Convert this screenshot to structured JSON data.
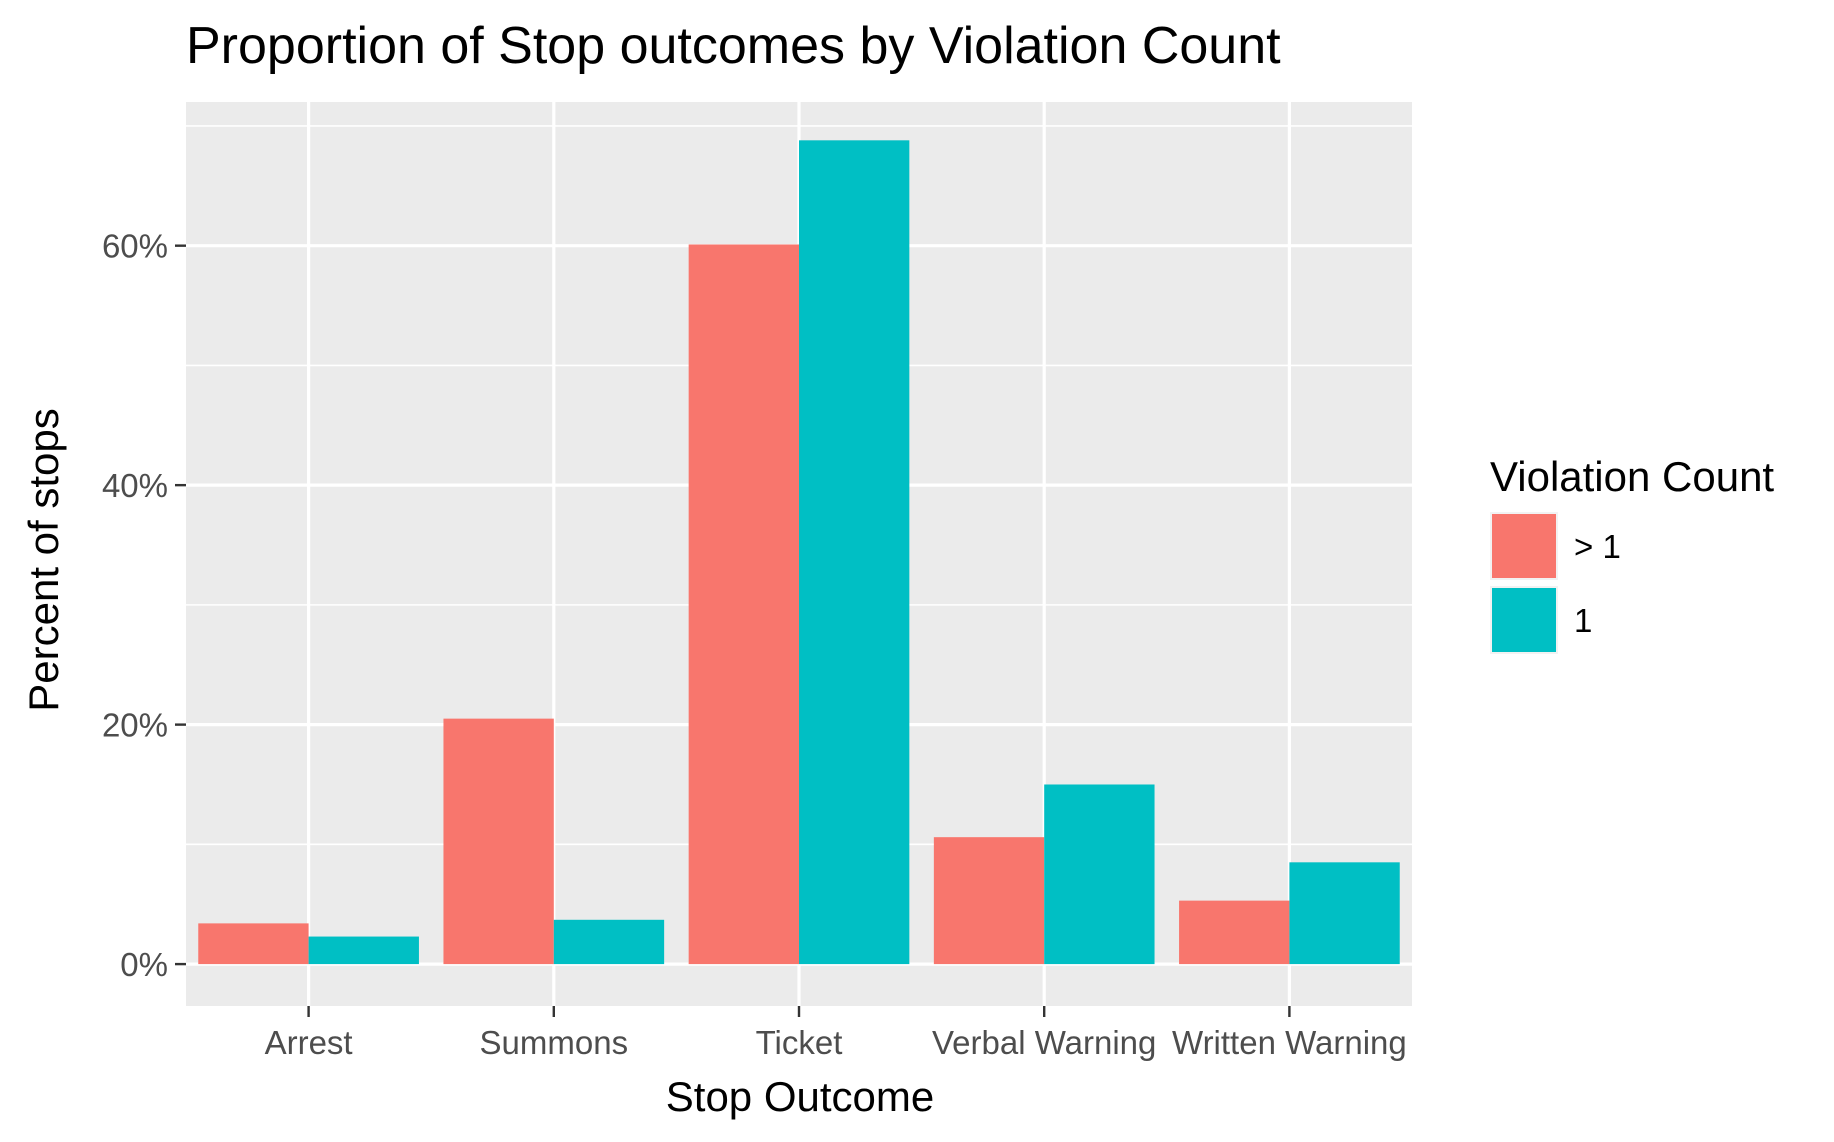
{
  "chart_data": {
    "type": "bar",
    "title": "Proportion of Stop outcomes by Violation Count",
    "xlabel": "Stop Outcome",
    "ylabel": "Percent of stops",
    "categories": [
      "Arrest",
      "Summons",
      "Ticket",
      "Verbal Warning",
      "Written Warning"
    ],
    "series": [
      {
        "name": "> 1",
        "color": "#F8766D",
        "values": [
          3.4,
          20.5,
          60.1,
          10.6,
          5.3
        ]
      },
      {
        "name": "1",
        "color": "#00BFC4",
        "values": [
          2.3,
          3.7,
          68.8,
          15.0,
          8.5
        ]
      }
    ],
    "ylim": [
      -3.5,
      72
    ],
    "y_ticks": [
      0,
      20,
      40,
      60
    ],
    "y_tick_labels": [
      "0%",
      "20%",
      "40%",
      "60%"
    ],
    "grid": true,
    "legend": {
      "title": "Violation Count",
      "placement": "right"
    },
    "colors": {
      "panel_background": "#EBEBEB",
      "grid_line": "#FFFFFF"
    }
  }
}
